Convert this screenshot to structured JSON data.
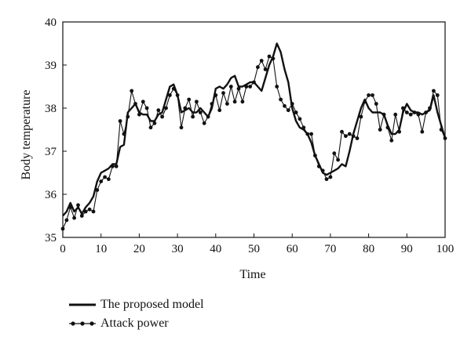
{
  "chart_data": {
    "type": "line",
    "xlabel": "Time",
    "ylabel": "Body temperature",
    "xlim": [
      0,
      100
    ],
    "ylim": [
      35,
      40
    ],
    "xticks": [
      0,
      10,
      20,
      30,
      40,
      50,
      60,
      70,
      80,
      90,
      100
    ],
    "yticks": [
      35,
      36,
      37,
      38,
      39,
      40
    ],
    "legend_position": "bottom-left",
    "series": [
      {
        "name": "The proposed model",
        "style": "thick-line",
        "color": "#111111",
        "x": [
          0,
          1,
          2,
          3,
          4,
          5,
          6,
          7,
          8,
          9,
          10,
          11,
          12,
          13,
          14,
          15,
          16,
          17,
          18,
          19,
          20,
          21,
          22,
          23,
          24,
          25,
          26,
          27,
          28,
          29,
          30,
          31,
          32,
          33,
          34,
          35,
          36,
          37,
          38,
          39,
          40,
          41,
          42,
          43,
          44,
          45,
          46,
          47,
          48,
          49,
          50,
          51,
          52,
          53,
          54,
          55,
          56,
          57,
          58,
          59,
          60,
          61,
          62,
          63,
          64,
          65,
          66,
          67,
          68,
          69,
          70,
          71,
          72,
          73,
          74,
          75,
          76,
          77,
          78,
          79,
          80,
          81,
          82,
          83,
          84,
          85,
          86,
          87,
          88,
          89,
          90,
          91,
          92,
          93,
          94,
          95,
          96,
          97,
          98,
          99,
          100
        ],
        "y": [
          35.5,
          35.6,
          35.8,
          35.6,
          35.7,
          35.55,
          35.7,
          35.8,
          35.95,
          36.3,
          36.5,
          36.55,
          36.6,
          36.7,
          36.7,
          37.1,
          37.15,
          37.9,
          38.0,
          38.1,
          37.9,
          37.85,
          37.85,
          37.7,
          37.7,
          37.85,
          37.9,
          38.2,
          38.5,
          38.55,
          38.3,
          37.9,
          37.95,
          38.0,
          37.9,
          37.9,
          38.0,
          37.9,
          37.8,
          38.0,
          38.45,
          38.5,
          38.45,
          38.55,
          38.7,
          38.75,
          38.5,
          38.5,
          38.55,
          38.6,
          38.6,
          38.5,
          38.4,
          38.7,
          39.0,
          39.2,
          39.5,
          39.3,
          38.9,
          38.6,
          38.0,
          37.7,
          37.55,
          37.5,
          37.4,
          37.2,
          36.9,
          36.7,
          36.5,
          36.45,
          36.5,
          36.55,
          36.6,
          36.7,
          36.65,
          37.0,
          37.4,
          37.7,
          38.0,
          38.2,
          38.0,
          37.9,
          37.9,
          37.9,
          37.85,
          37.6,
          37.4,
          37.4,
          37.5,
          37.9,
          38.1,
          37.95,
          37.9,
          37.9,
          37.85,
          37.9,
          37.95,
          38.3,
          37.9,
          37.6,
          37.3
        ]
      },
      {
        "name": "Attack power",
        "style": "line-with-dots",
        "color": "#111111",
        "x": [
          0,
          1,
          2,
          3,
          4,
          5,
          6,
          7,
          8,
          9,
          10,
          11,
          12,
          13,
          14,
          15,
          16,
          17,
          18,
          19,
          20,
          21,
          22,
          23,
          24,
          25,
          26,
          27,
          28,
          29,
          30,
          31,
          32,
          33,
          34,
          35,
          36,
          37,
          38,
          39,
          40,
          41,
          42,
          43,
          44,
          45,
          46,
          47,
          48,
          49,
          50,
          51,
          52,
          53,
          54,
          55,
          56,
          57,
          58,
          59,
          60,
          61,
          62,
          63,
          64,
          65,
          66,
          67,
          68,
          69,
          70,
          71,
          72,
          73,
          74,
          75,
          76,
          77,
          78,
          79,
          80,
          81,
          82,
          83,
          84,
          85,
          86,
          87,
          88,
          89,
          90,
          91,
          92,
          93,
          94,
          95,
          96,
          97,
          98,
          99,
          100
        ],
        "y": [
          35.2,
          35.4,
          35.7,
          35.45,
          35.75,
          35.5,
          35.6,
          35.65,
          35.6,
          36.1,
          36.3,
          36.4,
          36.35,
          36.65,
          36.65,
          37.7,
          37.4,
          37.8,
          38.4,
          38.1,
          37.85,
          38.15,
          38.0,
          37.55,
          37.65,
          37.95,
          37.8,
          38.0,
          38.3,
          38.45,
          38.3,
          37.55,
          38.0,
          38.2,
          37.8,
          38.15,
          37.9,
          37.65,
          37.8,
          38.1,
          38.3,
          37.95,
          38.35,
          38.1,
          38.5,
          38.15,
          38.45,
          38.15,
          38.5,
          38.5,
          38.6,
          38.95,
          39.1,
          38.9,
          39.2,
          39.15,
          38.5,
          38.2,
          38.05,
          37.95,
          38.1,
          37.9,
          37.75,
          37.55,
          37.4,
          37.4,
          36.9,
          36.65,
          36.55,
          36.35,
          36.4,
          36.95,
          36.8,
          37.45,
          37.35,
          37.4,
          37.35,
          37.3,
          37.8,
          38.15,
          38.3,
          38.3,
          38.1,
          37.5,
          37.85,
          37.55,
          37.25,
          37.85,
          37.45,
          38.0,
          37.9,
          37.85,
          37.9,
          37.85,
          37.45,
          37.9,
          38.0,
          38.4,
          38.3,
          37.5,
          37.3
        ]
      }
    ]
  }
}
